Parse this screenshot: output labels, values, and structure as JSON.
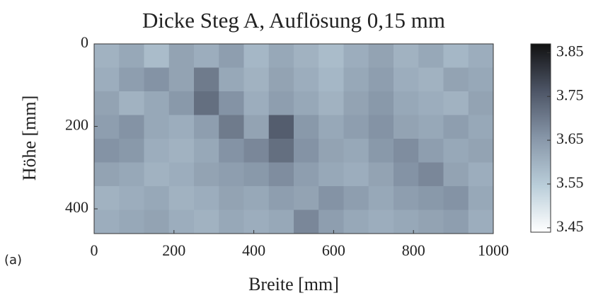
{
  "chart_data": {
    "type": "heatmap",
    "title": "Dicke Steg A, Auflösung 0,15 mm",
    "panel_label": "(a)",
    "x_label": "Breite [mm]",
    "y_label": "Höhe [mm]",
    "xlim": [
      0,
      1000
    ],
    "xticks": [
      0,
      200,
      400,
      600,
      800,
      1000
    ],
    "ylim": [
      0,
      460
    ],
    "yticks": [
      0,
      200,
      400
    ],
    "y_reversed": true,
    "clim": [
      3.44,
      3.87
    ],
    "cticks": [
      3.45,
      3.55,
      3.65,
      3.75,
      3.85
    ],
    "colormap": [
      "#ffffff",
      "#b9cdd9",
      "#8796a8",
      "#4d5566",
      "#111111"
    ],
    "z": [
      [
        3.6,
        3.62,
        3.58,
        3.63,
        3.61,
        3.64,
        3.59,
        3.62,
        3.6,
        3.58,
        3.61,
        3.63,
        3.6,
        3.62,
        3.59,
        3.61
      ],
      [
        3.61,
        3.64,
        3.66,
        3.63,
        3.7,
        3.62,
        3.6,
        3.63,
        3.61,
        3.59,
        3.62,
        3.64,
        3.61,
        3.6,
        3.63,
        3.62
      ],
      [
        3.63,
        3.6,
        3.62,
        3.65,
        3.72,
        3.66,
        3.61,
        3.64,
        3.62,
        3.6,
        3.63,
        3.65,
        3.62,
        3.61,
        3.6,
        3.63
      ],
      [
        3.64,
        3.66,
        3.62,
        3.61,
        3.64,
        3.7,
        3.63,
        3.75,
        3.65,
        3.62,
        3.64,
        3.66,
        3.63,
        3.62,
        3.64,
        3.62
      ],
      [
        3.66,
        3.65,
        3.61,
        3.6,
        3.62,
        3.66,
        3.68,
        3.72,
        3.66,
        3.63,
        3.62,
        3.65,
        3.67,
        3.64,
        3.62,
        3.63
      ],
      [
        3.63,
        3.62,
        3.6,
        3.61,
        3.63,
        3.64,
        3.65,
        3.67,
        3.64,
        3.62,
        3.61,
        3.63,
        3.66,
        3.68,
        3.63,
        3.61
      ],
      [
        3.6,
        3.61,
        3.62,
        3.6,
        3.61,
        3.63,
        3.62,
        3.64,
        3.63,
        3.66,
        3.64,
        3.62,
        3.64,
        3.65,
        3.66,
        3.62
      ],
      [
        3.61,
        3.62,
        3.63,
        3.61,
        3.6,
        3.62,
        3.61,
        3.62,
        3.68,
        3.64,
        3.62,
        3.61,
        3.62,
        3.63,
        3.64,
        3.61
      ]
    ]
  }
}
